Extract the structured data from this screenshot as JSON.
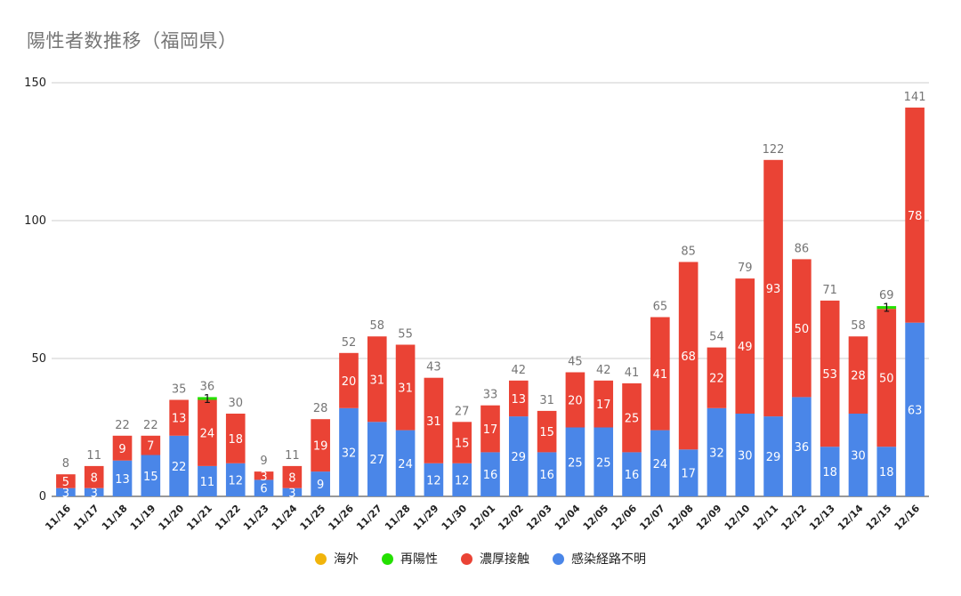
{
  "chart_data": {
    "type": "bar",
    "stacked": true,
    "title": "陽性者数推移（福岡県）",
    "xlabel": "",
    "ylabel": "",
    "ylim": [
      0,
      150
    ],
    "yticks": [
      "0",
      "50",
      "100",
      "150"
    ],
    "grid": true,
    "legend_position": "bottom",
    "categories": [
      "11/16",
      "11/17",
      "11/18",
      "11/19",
      "11/20",
      "11/21",
      "11/22",
      "11/23",
      "11/24",
      "11/25",
      "11/26",
      "11/27",
      "11/28",
      "11/29",
      "11/30",
      "12/01",
      "12/02",
      "12/03",
      "12/04",
      "12/05",
      "12/06",
      "12/07",
      "12/08",
      "12/09",
      "12/10",
      "12/11",
      "12/12",
      "12/13",
      "12/14",
      "12/15",
      "12/16"
    ],
    "series": [
      {
        "name": "感染経路不明",
        "color": "#4a86e8",
        "values": [
          3,
          3,
          13,
          15,
          22,
          11,
          12,
          6,
          3,
          9,
          32,
          27,
          24,
          12,
          12,
          16,
          29,
          16,
          25,
          25,
          16,
          24,
          17,
          32,
          30,
          29,
          36,
          18,
          30,
          18,
          63
        ]
      },
      {
        "name": "濃厚接触",
        "color": "#ea4335",
        "values": [
          5,
          8,
          9,
          7,
          13,
          24,
          18,
          3,
          8,
          19,
          20,
          31,
          31,
          31,
          15,
          17,
          13,
          15,
          20,
          17,
          25,
          41,
          68,
          22,
          49,
          93,
          50,
          53,
          28,
          50,
          78
        ]
      },
      {
        "name": "再陽性",
        "color": "#24e000",
        "values": [
          0,
          0,
          0,
          0,
          0,
          1,
          0,
          0,
          0,
          0,
          0,
          0,
          0,
          0,
          0,
          0,
          0,
          0,
          0,
          0,
          0,
          0,
          0,
          0,
          0,
          0,
          0,
          0,
          0,
          1,
          0
        ]
      },
      {
        "name": "海外",
        "color": "#f1b40b",
        "values": [
          0,
          0,
          0,
          0,
          0,
          0,
          0,
          0,
          0,
          0,
          0,
          0,
          0,
          0,
          0,
          0,
          0,
          0,
          0,
          0,
          0,
          0,
          0,
          0,
          0,
          0,
          0,
          0,
          0,
          0,
          0
        ]
      }
    ],
    "totals": [
      8,
      11,
      22,
      22,
      35,
      36,
      30,
      9,
      11,
      28,
      52,
      58,
      55,
      43,
      27,
      33,
      42,
      31,
      45,
      42,
      41,
      65,
      85,
      54,
      79,
      122,
      86,
      71,
      58,
      69,
      141
    ],
    "legend_order": [
      "海外",
      "再陽性",
      "濃厚接触",
      "感染経路不明"
    ]
  }
}
